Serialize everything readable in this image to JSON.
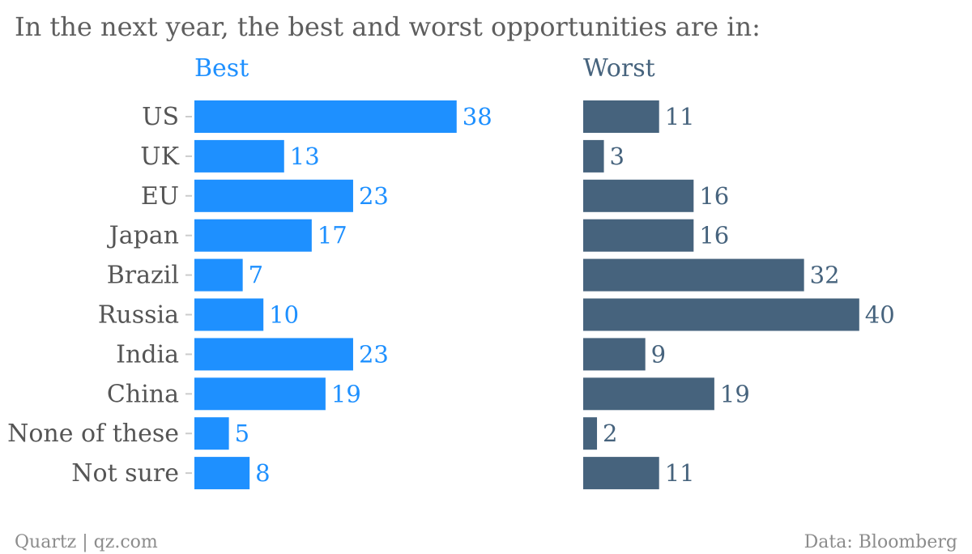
{
  "chart_data": {
    "type": "bar",
    "orientation": "horizontal",
    "title": "In the next year, the best and worst opportunities are in:",
    "categories": [
      "US",
      "UK",
      "EU",
      "Japan",
      "Brazil",
      "Russia",
      "India",
      "China",
      "None of these",
      "Not sure"
    ],
    "series": [
      {
        "name": "Best",
        "values": [
          38,
          13,
          23,
          17,
          7,
          10,
          23,
          19,
          5,
          8
        ],
        "color": "#1e90ff"
      },
      {
        "name": "Worst",
        "values": [
          11,
          3,
          16,
          16,
          32,
          40,
          9,
          19,
          2,
          11
        ],
        "color": "#46637d"
      }
    ],
    "xlim": [
      0,
      40
    ],
    "grid": false,
    "legend": "panel titles above each panel",
    "footer": {
      "left": "Quartz | qz.com",
      "right": "Data: Bloomberg"
    },
    "colors": {
      "label": "#555555",
      "title": "#5e5e5e",
      "footer": "#8c8c8c",
      "tick": "#cccccc"
    }
  }
}
